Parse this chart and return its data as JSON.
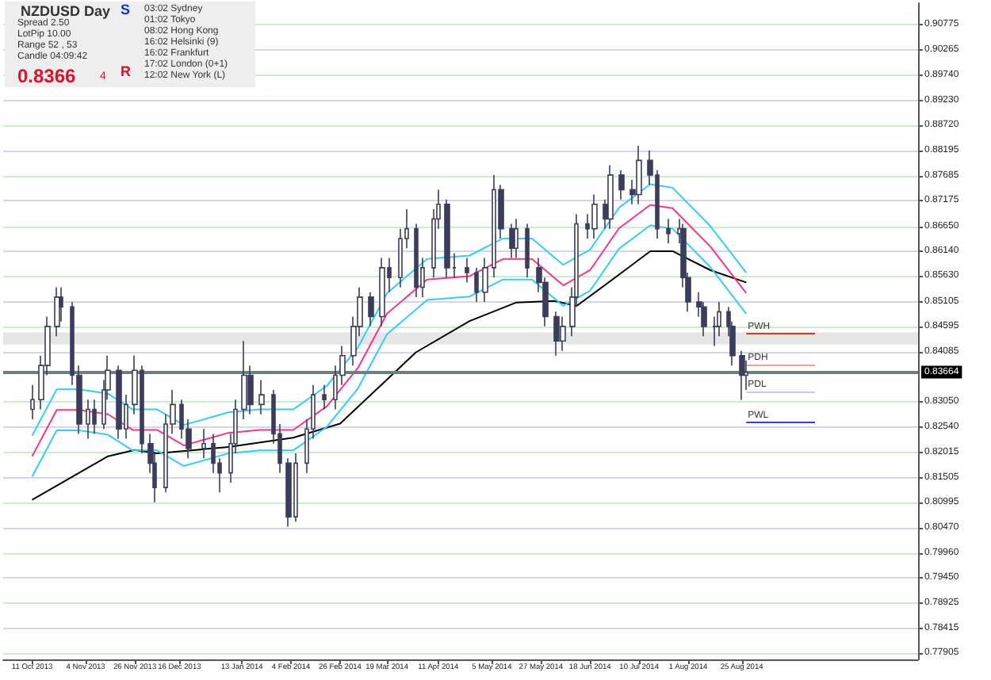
{
  "chart_data": {
    "type": "candlestick",
    "title": "NZDUSD  Day",
    "color": "#3c3c5c",
    "grid": "y",
    "marker": "none",
    "annotations": [
      "Spread  2.50",
      "LotPip  10.00",
      "Range  52 , 53",
      "Candle  04:09:42",
      "0.8366",
      "4",
      "S",
      "R",
      "03:02  Sydney",
      "01:02  Tokyo",
      "08:02  Hong Kong",
      "16:02  Helsinki (9)",
      "16:02  Frankfurt",
      "17:02  London (0+1)",
      "12:02  New York (L)"
    ],
    "xlim": [
      "2013-09-28",
      "2014-11-12"
    ],
    "xticks": [
      {
        "value": "2013-10-11",
        "label": "11 Oct 2013"
      },
      {
        "value": "2013-11-04",
        "label": "4 Nov 2013"
      },
      {
        "value": "2013-11-26",
        "label": "26 Nov 2013"
      },
      {
        "value": "2013-12-16",
        "label": "16 Dec 2013"
      },
      {
        "value": "2014-01-13",
        "label": "13 Jan 2014"
      },
      {
        "value": "2014-02-04",
        "label": "4 Feb 2014"
      },
      {
        "value": "2014-02-26",
        "label": "26 Feb 2014"
      },
      {
        "value": "2014-03-19",
        "label": "19 Mar 2014"
      },
      {
        "value": "2014-04-11",
        "label": "11 Apr 2014"
      },
      {
        "value": "2014-05-05",
        "label": "5 May 2014"
      },
      {
        "value": "2014-05-27",
        "label": "27 May 2014"
      },
      {
        "value": "2014-06-18",
        "label": "18 Jun 2014"
      },
      {
        "value": "2014-07-10",
        "label": "10 Jul 2014"
      },
      {
        "value": "2014-08-01",
        "label": "1 Aug 2014"
      },
      {
        "value": "2014-08-25",
        "label": "25 Aug 2014"
      }
    ],
    "ylim": [
      0.7778,
      0.9122
    ],
    "yticks": [
      {
        "value": 0.77905,
        "label": "0.77905"
      },
      {
        "value": 0.78415,
        "label": "0.78415"
      },
      {
        "value": 0.78925,
        "label": "0.78925"
      },
      {
        "value": 0.7945,
        "label": "0.79450"
      },
      {
        "value": 0.7996,
        "label": "0.79960"
      },
      {
        "value": 0.8047,
        "label": "0.80470"
      },
      {
        "value": 0.80995,
        "label": "0.80995"
      },
      {
        "value": 0.81505,
        "label": "0.81505"
      },
      {
        "value": 0.82015,
        "label": "0.82015"
      },
      {
        "value": 0.8254,
        "label": "0.82540"
      },
      {
        "value": 0.8305,
        "label": "0.83050"
      },
      {
        "value": 0.84085,
        "label": "0.84085"
      },
      {
        "value": 0.84595,
        "label": "0.84595"
      },
      {
        "value": 0.85105,
        "label": "0.85105"
      },
      {
        "value": 0.8563,
        "label": "0.85630"
      },
      {
        "value": 0.8614,
        "label": "0.86140"
      },
      {
        "value": 0.8665,
        "label": "0.86650"
      },
      {
        "value": 0.87175,
        "label": "0.87175"
      },
      {
        "value": 0.87685,
        "label": "0.87685"
      },
      {
        "value": 0.88195,
        "label": "0.88195"
      },
      {
        "value": 0.8872,
        "label": "0.88720"
      },
      {
        "value": 0.8923,
        "label": "0.89230"
      },
      {
        "value": 0.8974,
        "label": "0.89740"
      },
      {
        "value": 0.90265,
        "label": "0.90265"
      },
      {
        "value": 0.90775,
        "label": "0.90775"
      }
    ],
    "x": [
      "2013-10-11",
      "2013-10-15",
      "2013-10-18",
      "2013-10-22",
      "2013-10-24",
      "2013-10-29",
      "2013-11-01",
      "2013-11-05",
      "2013-11-08",
      "2013-11-12",
      "2013-11-14",
      "2013-11-19",
      "2013-11-22",
      "2013-11-26",
      "2013-11-29",
      "2013-12-03",
      "2013-12-05",
      "2013-12-10",
      "2013-12-13",
      "2013-12-17",
      "2013-12-20",
      "2013-12-27",
      "2013-12-31",
      "2014-01-03",
      "2014-01-08",
      "2014-01-10",
      "2014-01-14",
      "2014-01-17",
      "2014-01-22",
      "2014-01-27",
      "2014-01-30",
      "2014-02-03",
      "2014-02-06",
      "2014-02-11",
      "2014-02-14",
      "2014-02-19",
      "2014-02-24",
      "2014-02-27",
      "2014-03-04",
      "2014-03-07",
      "2014-03-12",
      "2014-03-17",
      "2014-03-20",
      "2014-03-25",
      "2014-03-28",
      "2014-04-01",
      "2014-04-04",
      "2014-04-09",
      "2014-04-11",
      "2014-04-15",
      "2014-04-18",
      "2014-04-24",
      "2014-04-28",
      "2014-05-02",
      "2014-05-06",
      "2014-05-09",
      "2014-05-14",
      "2014-05-16",
      "2014-05-21",
      "2014-05-26",
      "2014-05-29",
      "2014-06-03",
      "2014-06-06",
      "2014-06-10",
      "2014-06-12",
      "2014-06-17",
      "2014-06-20",
      "2014-06-25",
      "2014-06-27",
      "2014-07-02",
      "2014-07-07",
      "2014-07-10",
      "2014-07-15",
      "2014-07-18",
      "2014-07-23",
      "2014-07-28",
      "2014-07-30",
      "2014-08-01",
      "2014-08-06",
      "2014-08-08",
      "2014-08-13",
      "2014-08-15",
      "2014-08-19",
      "2014-08-21",
      "2014-08-25",
      "2014-08-27"
    ],
    "ohlc": [
      [
        0.829,
        0.834,
        0.827,
        0.831
      ],
      [
        0.831,
        0.84,
        0.829,
        0.838
      ],
      [
        0.838,
        0.848,
        0.836,
        0.846
      ],
      [
        0.846,
        0.854,
        0.844,
        0.852
      ],
      [
        0.852,
        0.854,
        0.847,
        0.85
      ],
      [
        0.85,
        0.851,
        0.834,
        0.836
      ],
      [
        0.836,
        0.838,
        0.824,
        0.826
      ],
      [
        0.826,
        0.831,
        0.823,
        0.829
      ],
      [
        0.829,
        0.831,
        0.824,
        0.826
      ],
      [
        0.826,
        0.835,
        0.825,
        0.833
      ],
      [
        0.833,
        0.84,
        0.831,
        0.837
      ],
      [
        0.837,
        0.838,
        0.823,
        0.825
      ],
      [
        0.825,
        0.832,
        0.823,
        0.83
      ],
      [
        0.83,
        0.84,
        0.828,
        0.837
      ],
      [
        0.837,
        0.838,
        0.82,
        0.822
      ],
      [
        0.822,
        0.824,
        0.816,
        0.818
      ],
      [
        0.818,
        0.82,
        0.81,
        0.813
      ],
      [
        0.813,
        0.828,
        0.812,
        0.826
      ],
      [
        0.826,
        0.833,
        0.824,
        0.83
      ],
      [
        0.83,
        0.831,
        0.823,
        0.825
      ],
      [
        0.825,
        0.827,
        0.819,
        0.821
      ],
      [
        0.821,
        0.825,
        0.819,
        0.822
      ],
      [
        0.822,
        0.824,
        0.816,
        0.818
      ],
      [
        0.818,
        0.819,
        0.812,
        0.816
      ],
      [
        0.816,
        0.824,
        0.814,
        0.822
      ],
      [
        0.822,
        0.831,
        0.82,
        0.829
      ],
      [
        0.829,
        0.843,
        0.827,
        0.836
      ],
      [
        0.836,
        0.838,
        0.828,
        0.83
      ],
      [
        0.83,
        0.835,
        0.828,
        0.832
      ],
      [
        0.832,
        0.833,
        0.822,
        0.824
      ],
      [
        0.824,
        0.826,
        0.816,
        0.818
      ],
      [
        0.818,
        0.819,
        0.805,
        0.807
      ],
      [
        0.807,
        0.82,
        0.806,
        0.818
      ],
      [
        0.818,
        0.827,
        0.816,
        0.825
      ],
      [
        0.825,
        0.834,
        0.823,
        0.832
      ],
      [
        0.832,
        0.834,
        0.829,
        0.831
      ],
      [
        0.831,
        0.838,
        0.829,
        0.836
      ],
      [
        0.836,
        0.842,
        0.834,
        0.84
      ],
      [
        0.84,
        0.848,
        0.838,
        0.846
      ],
      [
        0.846,
        0.854,
        0.844,
        0.852
      ],
      [
        0.852,
        0.853,
        0.846,
        0.848
      ],
      [
        0.848,
        0.86,
        0.846,
        0.858
      ],
      [
        0.858,
        0.86,
        0.853,
        0.856
      ],
      [
        0.856,
        0.866,
        0.854,
        0.864
      ],
      [
        0.864,
        0.87,
        0.862,
        0.866
      ],
      [
        0.866,
        0.867,
        0.852,
        0.854
      ],
      [
        0.854,
        0.86,
        0.852,
        0.858
      ],
      [
        0.858,
        0.87,
        0.856,
        0.868
      ],
      [
        0.868,
        0.874,
        0.866,
        0.871
      ],
      [
        0.871,
        0.872,
        0.856,
        0.858
      ],
      [
        0.858,
        0.861,
        0.856,
        0.858
      ],
      [
        0.858,
        0.86,
        0.855,
        0.857
      ],
      [
        0.857,
        0.858,
        0.851,
        0.853
      ],
      [
        0.853,
        0.86,
        0.851,
        0.858
      ],
      [
        0.858,
        0.877,
        0.856,
        0.874
      ],
      [
        0.874,
        0.875,
        0.864,
        0.866
      ],
      [
        0.866,
        0.867,
        0.86,
        0.862
      ],
      [
        0.862,
        0.868,
        0.86,
        0.866
      ],
      [
        0.866,
        0.867,
        0.856,
        0.858
      ],
      [
        0.858,
        0.86,
        0.853,
        0.855
      ],
      [
        0.855,
        0.856,
        0.846,
        0.848
      ],
      [
        0.848,
        0.849,
        0.84,
        0.843
      ],
      [
        0.843,
        0.848,
        0.841,
        0.846
      ],
      [
        0.846,
        0.854,
        0.844,
        0.852
      ],
      [
        0.852,
        0.869,
        0.85,
        0.867
      ],
      [
        0.867,
        0.869,
        0.864,
        0.866
      ],
      [
        0.866,
        0.873,
        0.864,
        0.871
      ],
      [
        0.871,
        0.872,
        0.866,
        0.868
      ],
      [
        0.868,
        0.879,
        0.866,
        0.877
      ],
      [
        0.877,
        0.878,
        0.872,
        0.874
      ],
      [
        0.874,
        0.876,
        0.871,
        0.873
      ],
      [
        0.873,
        0.883,
        0.871,
        0.88
      ],
      [
        0.88,
        0.882,
        0.875,
        0.877
      ],
      [
        0.877,
        0.878,
        0.864,
        0.866
      ],
      [
        0.866,
        0.868,
        0.863,
        0.865
      ],
      [
        0.865,
        0.868,
        0.863,
        0.866
      ],
      [
        0.866,
        0.867,
        0.854,
        0.856
      ],
      [
        0.856,
        0.857,
        0.849,
        0.851
      ],
      [
        0.851,
        0.853,
        0.848,
        0.85
      ],
      [
        0.85,
        0.851,
        0.844,
        0.846
      ],
      [
        0.846,
        0.848,
        0.842,
        0.846
      ],
      [
        0.846,
        0.851,
        0.844,
        0.849
      ],
      [
        0.849,
        0.85,
        0.844,
        0.846
      ],
      [
        0.846,
        0.847,
        0.838,
        0.84
      ],
      [
        0.84,
        0.841,
        0.8309,
        0.836
      ],
      [
        0.836,
        0.839,
        0.833,
        0.8366
      ]
    ],
    "series": [
      {
        "type": "line",
        "color": "#000000",
        "x": [
          "2013-10-11",
          "2013-11-14",
          "2013-11-26",
          "2013-12-06",
          "2014-01-07",
          "2014-02-05",
          "2014-02-26",
          "2014-03-12",
          "2014-04-01",
          "2014-04-25",
          "2014-05-16",
          "2014-06-02",
          "2014-06-12",
          "2014-07-01",
          "2014-07-15",
          "2014-07-25",
          "2014-08-11",
          "2014-08-27"
        ],
        "values": [
          0.8105,
          0.8194,
          0.8207,
          0.82,
          0.8213,
          0.8232,
          0.8261,
          0.8321,
          0.8407,
          0.8471,
          0.8509,
          0.8512,
          0.8502,
          0.8566,
          0.8614,
          0.8614,
          0.8575,
          0.855
        ]
      },
      {
        "type": "line",
        "color": "#33ccff",
        "x": [
          "2013-10-11",
          "2013-10-22",
          "2013-11-01",
          "2013-11-14",
          "2013-11-25",
          "2013-12-06",
          "2013-12-18",
          "2014-01-07",
          "2014-01-21",
          "2014-02-05",
          "2014-02-20",
          "2014-03-06",
          "2014-03-19",
          "2014-04-06",
          "2014-04-25",
          "2014-05-10",
          "2014-05-23",
          "2014-06-06",
          "2014-06-18",
          "2014-07-01",
          "2014-07-15",
          "2014-07-25",
          "2014-08-11",
          "2014-08-27"
        ],
        "values": [
          0.8236,
          0.8331,
          0.8331,
          0.8322,
          0.829,
          0.829,
          0.8258,
          0.8284,
          0.829,
          0.829,
          0.8338,
          0.8417,
          0.8528,
          0.8598,
          0.8605,
          0.864,
          0.864,
          0.8586,
          0.8617,
          0.8703,
          0.8751,
          0.8744,
          0.8665,
          0.857
        ]
      },
      {
        "type": "line",
        "color": "#ff3385",
        "x": [
          "2013-10-11",
          "2013-10-22",
          "2013-11-01",
          "2013-11-14",
          "2013-11-25",
          "2013-12-06",
          "2013-12-18",
          "2014-01-07",
          "2014-01-21",
          "2014-02-05",
          "2014-02-20",
          "2014-03-06",
          "2014-03-19",
          "2014-04-06",
          "2014-04-25",
          "2014-05-10",
          "2014-05-23",
          "2014-06-06",
          "2014-06-18",
          "2014-07-01",
          "2014-07-15",
          "2014-07-25",
          "2014-08-11",
          "2014-08-27"
        ],
        "values": [
          0.8194,
          0.8289,
          0.8289,
          0.828,
          0.8248,
          0.8248,
          0.8216,
          0.8242,
          0.8248,
          0.8248,
          0.8296,
          0.8375,
          0.8486,
          0.8556,
          0.8563,
          0.8598,
          0.8598,
          0.8544,
          0.8575,
          0.8661,
          0.8709,
          0.8702,
          0.8623,
          0.8528
        ]
      },
      {
        "type": "line",
        "color": "#33ccff",
        "x": [
          "2013-10-11",
          "2013-10-22",
          "2013-11-01",
          "2013-11-14",
          "2013-11-25",
          "2013-12-06",
          "2013-12-18",
          "2014-01-07",
          "2014-01-21",
          "2014-02-05",
          "2014-02-20",
          "2014-03-06",
          "2014-03-19",
          "2014-04-06",
          "2014-04-25",
          "2014-05-10",
          "2014-05-23",
          "2014-06-06",
          "2014-06-18",
          "2014-07-01",
          "2014-07-15",
          "2014-07-25",
          "2014-08-11",
          "2014-08-27"
        ],
        "values": [
          0.8152,
          0.8247,
          0.8247,
          0.8238,
          0.8206,
          0.8206,
          0.8174,
          0.82,
          0.8206,
          0.8206,
          0.8254,
          0.8333,
          0.8444,
          0.8514,
          0.8521,
          0.8556,
          0.8556,
          0.8502,
          0.8533,
          0.8619,
          0.8667,
          0.866,
          0.8581,
          0.8486
        ]
      }
    ],
    "ref_lines": [
      {
        "axis": "y",
        "value": 0.83664,
        "label": "0.83664",
        "color": "#6e7e7e"
      },
      {
        "axis": "y",
        "value": 0.8445,
        "label": "PWH",
        "color": "#e03020"
      },
      {
        "axis": "y",
        "value": 0.8382,
        "label": "PDH",
        "color": "#f0a090"
      },
      {
        "axis": "y",
        "value": 0.8327,
        "label": "PDL",
        "color": "#c8c8f0"
      },
      {
        "axis": "y",
        "value": 0.8264,
        "label": "PWL",
        "color": "#3040e0"
      }
    ],
    "bands": [
      {
        "axis": "y",
        "from": 0.8423,
        "to": 0.8448,
        "color": "#e6e6e6"
      }
    ]
  }
}
